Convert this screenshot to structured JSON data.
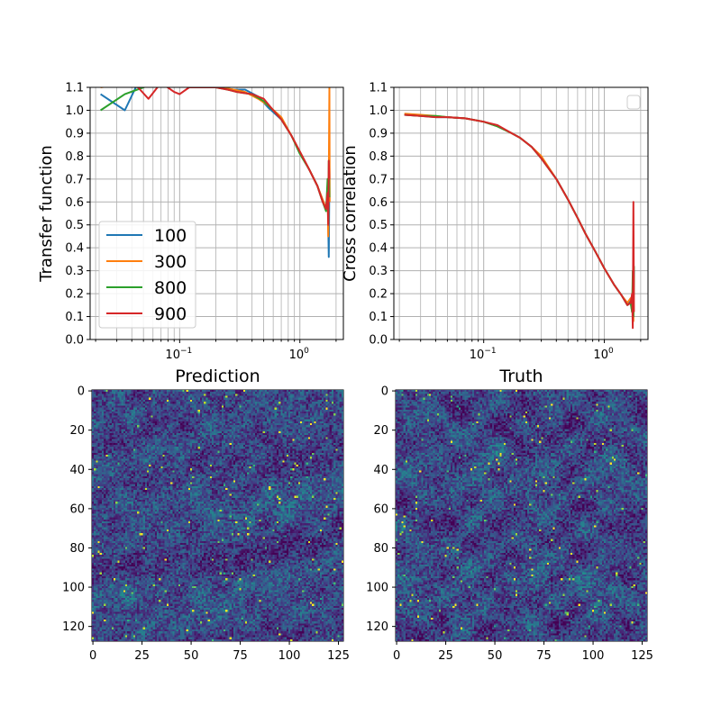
{
  "chart_data": [
    {
      "type": "line",
      "xscale": "log",
      "xlim": [
        0.018,
        2.3
      ],
      "ylim": [
        0.0,
        1.1
      ],
      "ylabel": "Transfer function",
      "xticks": [
        {
          "value": 0.1,
          "label": "10",
          "exp": "−1"
        },
        {
          "value": 1.0,
          "label": "10",
          "exp": "0"
        }
      ],
      "yticks": [
        "0.0",
        "0.1",
        "0.2",
        "0.3",
        "0.4",
        "0.5",
        "0.6",
        "0.7",
        "0.8",
        "0.9",
        "1.0",
        "1.1"
      ],
      "grid": true,
      "legend_placement": "lower-left",
      "series": [
        {
          "name": "100",
          "color": "#1f77b4",
          "x": [
            0.022,
            0.035,
            0.045,
            0.06,
            0.08,
            0.1,
            0.13,
            0.17,
            0.22,
            0.28,
            0.35,
            0.45,
            0.55,
            0.7,
            0.85,
            1.0,
            1.2,
            1.4,
            1.55,
            1.65,
            1.7,
            1.72,
            1.74,
            1.76
          ],
          "y": [
            1.07,
            1.0,
            1.12,
            1.15,
            1.14,
            1.13,
            1.12,
            1.11,
            1.1,
            1.09,
            1.09,
            1.06,
            1.01,
            0.96,
            0.89,
            0.82,
            0.74,
            0.67,
            0.6,
            0.57,
            0.64,
            0.5,
            0.36,
            0.72
          ]
        },
        {
          "name": "300",
          "color": "#ff7f0e",
          "x": [
            0.022,
            0.04,
            0.06,
            0.08,
            0.1,
            0.13,
            0.17,
            0.22,
            0.28,
            0.35,
            0.45,
            0.55,
            0.7,
            0.85,
            1.0,
            1.2,
            1.4,
            1.55,
            1.65,
            1.7,
            1.72,
            1.74,
            1.76,
            1.77
          ],
          "y": [
            1.1,
            1.12,
            1.14,
            1.13,
            1.12,
            1.11,
            1.1,
            1.1,
            1.09,
            1.08,
            1.05,
            1.02,
            0.97,
            0.89,
            0.82,
            0.74,
            0.67,
            0.61,
            0.57,
            0.65,
            0.45,
            0.7,
            1.1,
            0.6
          ]
        },
        {
          "name": "800",
          "color": "#2ca02c",
          "x": [
            0.022,
            0.035,
            0.05,
            0.07,
            0.09,
            0.12,
            0.15,
            0.2,
            0.25,
            0.3,
            0.4,
            0.5,
            0.6,
            0.7,
            0.85,
            1.0,
            1.2,
            1.4,
            1.55,
            1.65,
            1.7,
            1.72,
            1.74,
            1.76
          ],
          "y": [
            1.0,
            1.07,
            1.1,
            1.13,
            1.12,
            1.11,
            1.1,
            1.1,
            1.09,
            1.08,
            1.07,
            1.04,
            1.0,
            0.96,
            0.89,
            0.81,
            0.74,
            0.67,
            0.6,
            0.56,
            0.7,
            0.52,
            0.78,
            0.62
          ]
        },
        {
          "name": "900",
          "color": "#d62728",
          "x": [
            0.022,
            0.035,
            0.045,
            0.055,
            0.07,
            0.09,
            0.1,
            0.12,
            0.15,
            0.2,
            0.25,
            0.3,
            0.4,
            0.5,
            0.6,
            0.7,
            0.85,
            1.0,
            1.2,
            1.4,
            1.55,
            1.65,
            1.7,
            1.72,
            1.74,
            1.76
          ],
          "y": [
            1.13,
            1.12,
            1.1,
            1.05,
            1.12,
            1.08,
            1.07,
            1.1,
            1.1,
            1.1,
            1.09,
            1.08,
            1.07,
            1.05,
            1.0,
            0.96,
            0.89,
            0.82,
            0.74,
            0.67,
            0.6,
            0.57,
            0.64,
            0.5,
            0.78,
            0.7
          ]
        }
      ]
    },
    {
      "type": "line",
      "xscale": "log",
      "xlim": [
        0.018,
        2.3
      ],
      "ylim": [
        0.0,
        1.1
      ],
      "ylabel": "Cross correlation",
      "xticks": [
        {
          "value": 0.1,
          "label": "10",
          "exp": "−1"
        },
        {
          "value": 1.0,
          "label": "10",
          "exp": "0"
        }
      ],
      "yticks": [
        "0.0",
        "0.1",
        "0.2",
        "0.3",
        "0.4",
        "0.5",
        "0.6",
        "0.7",
        "0.8",
        "0.9",
        "1.0",
        "1.1"
      ],
      "grid": true,
      "legend_placement": "upper-right",
      "series": [
        {
          "color": "#1f77b4",
          "x": [
            0.022,
            0.03,
            0.04,
            0.05,
            0.07,
            0.1,
            0.13,
            0.17,
            0.2,
            0.25,
            0.3,
            0.4,
            0.5,
            0.6,
            0.7,
            0.85,
            1.0,
            1.2,
            1.4,
            1.55,
            1.65,
            1.7,
            1.72,
            1.74,
            1.76
          ],
          "y": [
            0.98,
            0.975,
            0.97,
            0.97,
            0.965,
            0.95,
            0.93,
            0.9,
            0.88,
            0.84,
            0.79,
            0.7,
            0.61,
            0.53,
            0.46,
            0.38,
            0.31,
            0.24,
            0.19,
            0.15,
            0.17,
            0.12,
            0.22,
            0.1,
            0.3
          ]
        },
        {
          "color": "#ff7f0e",
          "x": [
            0.022,
            0.03,
            0.04,
            0.05,
            0.07,
            0.1,
            0.13,
            0.17,
            0.2,
            0.25,
            0.3,
            0.4,
            0.5,
            0.6,
            0.7,
            0.85,
            1.0,
            1.2,
            1.4,
            1.55,
            1.65,
            1.7,
            1.72,
            1.74,
            1.76
          ],
          "y": [
            0.985,
            0.98,
            0.975,
            0.97,
            0.965,
            0.95,
            0.93,
            0.9,
            0.88,
            0.84,
            0.8,
            0.7,
            0.61,
            0.53,
            0.46,
            0.38,
            0.31,
            0.24,
            0.19,
            0.16,
            0.18,
            0.12,
            0.25,
            0.08,
            0.28
          ]
        },
        {
          "color": "#2ca02c",
          "x": [
            0.022,
            0.03,
            0.04,
            0.05,
            0.07,
            0.1,
            0.13,
            0.17,
            0.2,
            0.25,
            0.3,
            0.4,
            0.5,
            0.6,
            0.7,
            0.85,
            1.0,
            1.2,
            1.4,
            1.55,
            1.65,
            1.7,
            1.72,
            1.74,
            1.76
          ],
          "y": [
            0.98,
            0.975,
            0.975,
            0.97,
            0.965,
            0.95,
            0.93,
            0.9,
            0.88,
            0.84,
            0.79,
            0.7,
            0.61,
            0.53,
            0.46,
            0.38,
            0.31,
            0.24,
            0.19,
            0.15,
            0.16,
            0.12,
            0.3,
            0.1,
            0.32
          ]
        },
        {
          "color": "#d62728",
          "x": [
            0.022,
            0.03,
            0.04,
            0.05,
            0.07,
            0.1,
            0.13,
            0.17,
            0.2,
            0.25,
            0.3,
            0.4,
            0.5,
            0.6,
            0.7,
            0.85,
            1.0,
            1.2,
            1.4,
            1.55,
            1.65,
            1.7,
            1.72,
            1.74,
            1.76
          ],
          "y": [
            0.98,
            0.975,
            0.97,
            0.97,
            0.965,
            0.95,
            0.935,
            0.9,
            0.88,
            0.84,
            0.79,
            0.7,
            0.61,
            0.53,
            0.46,
            0.38,
            0.31,
            0.24,
            0.19,
            0.15,
            0.16,
            0.2,
            0.05,
            0.6,
            0.12
          ]
        }
      ]
    },
    {
      "type": "heatmap",
      "title": "Prediction",
      "rows": 128,
      "cols": 128,
      "colormap": "viridis",
      "xticks": [
        "0",
        "25",
        "50",
        "75",
        "100",
        "125"
      ],
      "yticks": [
        "0",
        "20",
        "40",
        "60",
        "80",
        "100",
        "120"
      ]
    },
    {
      "type": "heatmap",
      "title": "Truth",
      "rows": 128,
      "cols": 128,
      "colormap": "viridis",
      "xticks": [
        "0",
        "25",
        "50",
        "75",
        "100",
        "125"
      ],
      "yticks": [
        "0",
        "20",
        "40",
        "60",
        "80",
        "100",
        "120"
      ]
    }
  ]
}
